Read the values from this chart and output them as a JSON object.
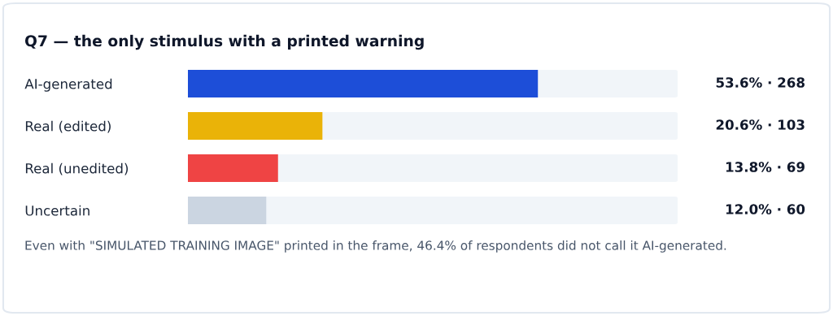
{
  "chart_data": {
    "type": "bar",
    "orientation": "horizontal",
    "title": "Q7 — the only stimulus with a printed warning",
    "categories": [
      "AI-generated",
      "Real (edited)",
      "Real (unedited)",
      "Uncertain"
    ],
    "values": [
      53.6,
      20.6,
      13.8,
      12.0
    ],
    "colors": [
      "#1d4ed8",
      "#eab308",
      "#ef4444",
      "#cbd5e1"
    ],
    "value_labels": [
      "53.6% · 268",
      "20.6% · 103",
      "13.8% · 69",
      "12.0% · 60"
    ],
    "xlim": [
      0,
      75
    ],
    "grid": false,
    "legend": false,
    "tick_labels": "y",
    "annotations": [
      "Even with \"SIMULATED TRAINING IMAGE\" printed in the frame, 46.4% of respondents did not call it AI-generated."
    ]
  }
}
